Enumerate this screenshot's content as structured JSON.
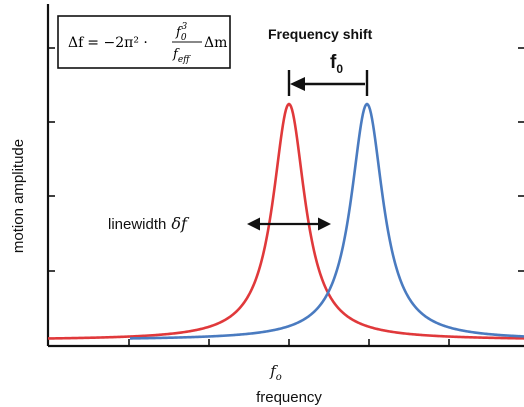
{
  "formula": {
    "lhs": "Δf",
    "eq": "= −2π² ·",
    "num_base": "f",
    "num_sub": "0",
    "num_sup": "3",
    "den_base": "f",
    "den_sub": "eff",
    "tail": "Δm"
  },
  "annotations": {
    "shift_title": "Frequency shift",
    "shift_value_base": "f",
    "shift_value_sub": "0",
    "linewidth_label": "linewidth",
    "linewidth_symbol": "δf"
  },
  "axes": {
    "ylabel": "motion amplitude",
    "xlabel": "frequency",
    "x_tick_base": "f",
    "x_tick_sub": "o"
  },
  "colors": {
    "red_curve": "#e0393b",
    "blue_curve": "#4a7bc0",
    "axis": "#111111"
  },
  "chart_data": {
    "type": "line",
    "series": [
      {
        "color": "red",
        "peak_x": 0.0,
        "linewidth": 0.5,
        "peak_height": 1.0
      },
      {
        "color": "blue",
        "peak_x": 1.0,
        "linewidth": 0.5,
        "peak_height": 1.0
      }
    ],
    "xlabel": "frequency",
    "ylabel": "motion amplitude",
    "x_ticks": [
      "f_o"
    ]
  }
}
